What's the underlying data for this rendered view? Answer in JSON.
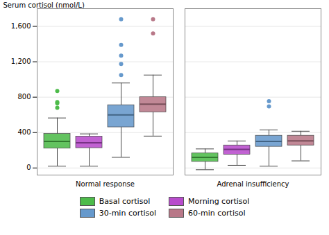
{
  "chart_data": {
    "type": "box",
    "ylabel": "Serum cortisol (nmol/L)",
    "categories": [
      "Normal response",
      "Adrenal insufficiency"
    ],
    "ylim": [
      -80,
      1800
    ],
    "yticks": [
      0,
      400,
      800,
      {
        "value": 1200,
        "label": "1,200"
      },
      {
        "value": 1600,
        "label": "1,600"
      }
    ],
    "grid": true,
    "legend": "bottom",
    "series": [
      {
        "name": "Basal cortisol",
        "color": "#4dbb4a",
        "values": [
          {
            "whislo": 20,
            "q1": 220,
            "med": 300,
            "q3": 385,
            "whishi": 565,
            "fliers": [
              680,
              730,
              745,
              870
            ]
          },
          {
            "whislo": -20,
            "q1": 70,
            "med": 120,
            "q3": 165,
            "whishi": 215,
            "fliers": []
          }
        ]
      },
      {
        "name": "Morning cortisol",
        "color": "#b84ccc",
        "values": [
          {
            "whislo": 20,
            "q1": 225,
            "med": 285,
            "q3": 355,
            "whishi": 385,
            "fliers": []
          },
          {
            "whislo": 30,
            "q1": 150,
            "med": 210,
            "q3": 255,
            "whishi": 305,
            "fliers": []
          }
        ]
      },
      {
        "name": "30-min cortisol",
        "color": "#6699cc",
        "values": [
          {
            "whislo": 120,
            "q1": 460,
            "med": 600,
            "q3": 710,
            "whishi": 960,
            "fliers": [
              1050,
              1175,
              1270,
              1390,
              1680
            ]
          },
          {
            "whislo": 20,
            "q1": 240,
            "med": 300,
            "q3": 365,
            "whishi": 430,
            "fliers": [
              695,
              755
            ]
          }
        ]
      },
      {
        "name": "60-min cortisol",
        "color": "#b87888",
        "values": [
          {
            "whislo": 360,
            "q1": 630,
            "med": 720,
            "q3": 800,
            "whishi": 1050,
            "fliers": [
              1520,
              1680
            ]
          },
          {
            "whislo": 80,
            "q1": 255,
            "med": 305,
            "q3": 365,
            "whishi": 415,
            "fliers": []
          }
        ]
      }
    ]
  }
}
